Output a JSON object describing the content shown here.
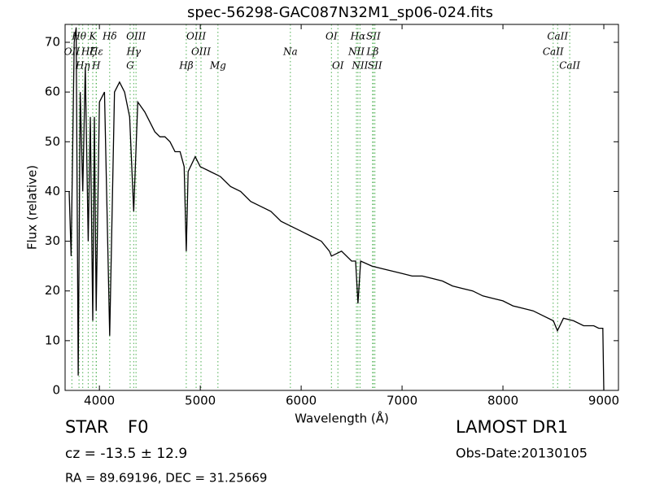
{
  "chart_data": {
    "type": "line",
    "title": "spec-56298-GAC087N32M1_sp06-024.fits",
    "x_label": "Wavelength (Å)",
    "y_label": "Flux (relative)",
    "xlim": [
      3660,
      9145
    ],
    "ylim": [
      0,
      73.6
    ],
    "xticks": [
      4000,
      5000,
      6000,
      7000,
      8000,
      9000
    ],
    "yticks": [
      0,
      10,
      20,
      30,
      40,
      50,
      60,
      70
    ],
    "color": "#000000",
    "line_color": "#4caf50",
    "x": [
      3700,
      3720,
      3750,
      3770,
      3790,
      3810,
      3835,
      3860,
      3889,
      3910,
      3934,
      3950,
      3968,
      4000,
      4050,
      4102,
      4150,
      4200,
      4250,
      4300,
      4340,
      4380,
      4450,
      4500,
      4550,
      4600,
      4650,
      4700,
      4750,
      4800,
      4840,
      4861,
      4880,
      4950,
      5000,
      5100,
      5200,
      5300,
      5400,
      5500,
      5600,
      5700,
      5800,
      5900,
      6000,
      6100,
      6200,
      6280,
      6300,
      6400,
      6500,
      6540,
      6563,
      6590,
      6700,
      6800,
      6900,
      7000,
      7100,
      7200,
      7300,
      7400,
      7500,
      7600,
      7700,
      7800,
      7900,
      8000,
      8100,
      8200,
      8300,
      8400,
      8500,
      8540,
      8600,
      8700,
      8800,
      8900,
      8950,
      8990,
      9000
    ],
    "values": [
      40,
      27,
      70,
      73,
      3,
      60,
      40,
      65,
      30,
      55,
      14,
      55,
      16,
      58,
      60,
      11,
      60,
      62,
      60,
      55,
      36,
      58,
      56,
      54,
      52,
      51,
      51,
      50,
      48,
      48,
      45,
      28,
      44,
      47,
      45,
      44,
      43,
      41,
      40,
      38,
      37,
      36,
      34,
      33,
      32,
      31,
      30,
      28,
      27,
      28,
      26,
      26,
      17.5,
      26,
      25,
      24.5,
      24,
      23.5,
      23,
      23,
      22.5,
      22,
      21,
      20.5,
      20,
      19,
      18.5,
      18,
      17,
      16.5,
      16,
      15,
      14,
      12,
      14.5,
      14,
      13,
      13,
      12.5,
      12.5,
      0
    ],
    "spectral_lines": [
      {
        "x": 3798,
        "label": "Hθ"
      },
      {
        "x": 3727,
        "label": "OII"
      },
      {
        "x": 3835,
        "label": "Hη"
      },
      {
        "x": 3934,
        "label": "K"
      },
      {
        "x": 3889,
        "label": "Hζ"
      },
      {
        "x": 3968,
        "label": "H"
      },
      {
        "x": 4102,
        "label": "Hδ"
      },
      {
        "x": 3970,
        "label": "Hε"
      },
      {
        "x": 4305,
        "label": "G"
      },
      {
        "x": 4363,
        "label": "OIII"
      },
      {
        "x": 4340,
        "label": "Hγ"
      },
      {
        "x": 4861,
        "label": "Hβ"
      },
      {
        "x": 4959,
        "label": "OIII"
      },
      {
        "x": 5007,
        "label": "OIII"
      },
      {
        "x": 5175,
        "label": "Mg"
      },
      {
        "x": 6300,
        "label": "OI"
      },
      {
        "x": 5893,
        "label": "Na"
      },
      {
        "x": 6364,
        "label": "OI"
      },
      {
        "x": 6563,
        "label": "Hα"
      },
      {
        "x": 6548,
        "label": "NII"
      },
      {
        "x": 6583,
        "label": "NII"
      },
      {
        "x": 6716,
        "label": "SII"
      },
      {
        "x": 6708,
        "label": "Lβ"
      },
      {
        "x": 6731,
        "label": "SII"
      },
      {
        "x": 8542,
        "label": "CaII"
      },
      {
        "x": 8498,
        "label": "CaII"
      },
      {
        "x": 8662,
        "label": "CaII"
      }
    ],
    "object_class": "STAR",
    "subclass": "F0",
    "survey": "LAMOST DR1",
    "redshift": "cz = -13.5 ± 12.9",
    "obs_date": "Obs-Date:20130105",
    "coordinates": "RA = 89.69196, DEC = 31.25669"
  }
}
